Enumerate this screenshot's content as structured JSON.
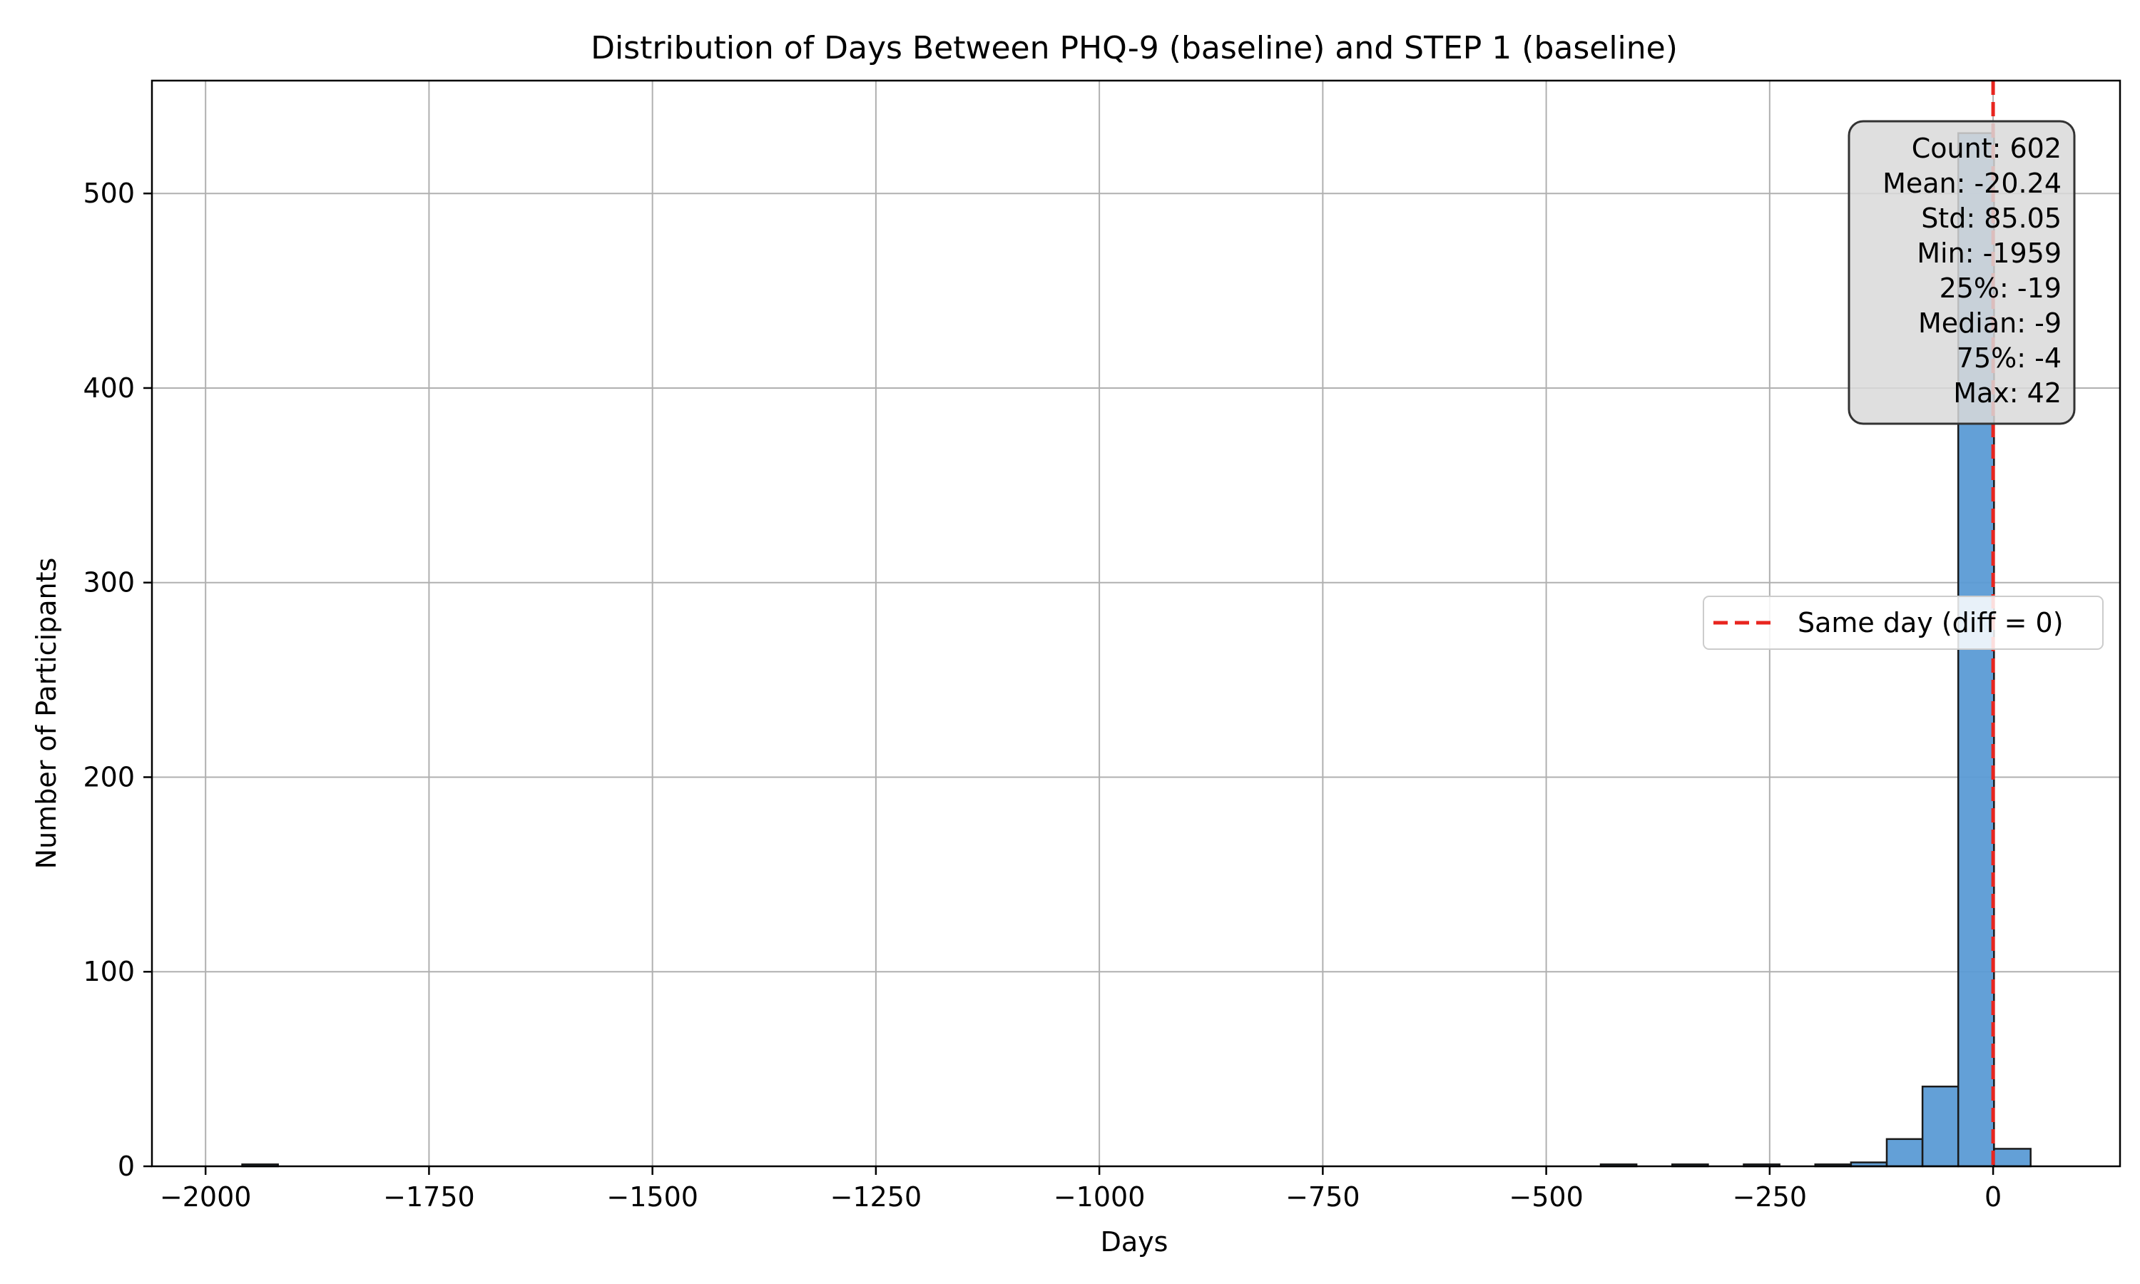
{
  "chart_data": {
    "type": "bar",
    "title": "Distribution of Days Between PHQ-9 (baseline) and STEP 1 (baseline)",
    "xlabel": "Days",
    "ylabel": "Number of Participants",
    "xlim": [
      -2060,
      142
    ],
    "ylim": [
      0,
      558
    ],
    "xticks": [
      -2000,
      -1750,
      -1500,
      -1250,
      -1000,
      -750,
      -500,
      -250,
      0
    ],
    "xtick_labels": [
      "−2000",
      "−1750",
      "−1500",
      "−1250",
      "−1000",
      "−750",
      "−500",
      "−250",
      "0"
    ],
    "yticks": [
      0,
      100,
      200,
      300,
      400,
      500
    ],
    "ytick_labels": [
      "0",
      "100",
      "200",
      "300",
      "400",
      "500"
    ],
    "grid": true,
    "bin_edges_start": -1959,
    "bin_width": 40,
    "bins": [
      {
        "x0": -1959,
        "x1": -1919,
        "count": 1
      },
      {
        "x0": -439,
        "x1": -399,
        "count": 1
      },
      {
        "x0": -359,
        "x1": -319,
        "count": 1
      },
      {
        "x0": -279,
        "x1": -239,
        "count": 1
      },
      {
        "x0": -199,
        "x1": -159,
        "count": 1
      },
      {
        "x0": -159,
        "x1": -119,
        "count": 2
      },
      {
        "x0": -119,
        "x1": -79,
        "count": 14
      },
      {
        "x0": -79,
        "x1": -39,
        "count": 41
      },
      {
        "x0": -39,
        "x1": 1,
        "count": 531
      },
      {
        "x0": 1,
        "x1": 42,
        "count": 9
      }
    ],
    "bar_color": "#5b9bd5",
    "reference_line": {
      "x": 0,
      "color": "#e8251f",
      "style": "dashed",
      "label": "Same day (diff = 0)"
    },
    "legend": {
      "position": "center-right",
      "entries": [
        "Same day (diff = 0)"
      ]
    },
    "stats_box": {
      "position": "top-right",
      "lines": [
        "Count: 602",
        "Mean: -20.24",
        "Std: 85.05",
        "Min: -1959",
        "25%: -19",
        "Median: -9",
        "75%: -4",
        "Max: 42"
      ]
    }
  }
}
